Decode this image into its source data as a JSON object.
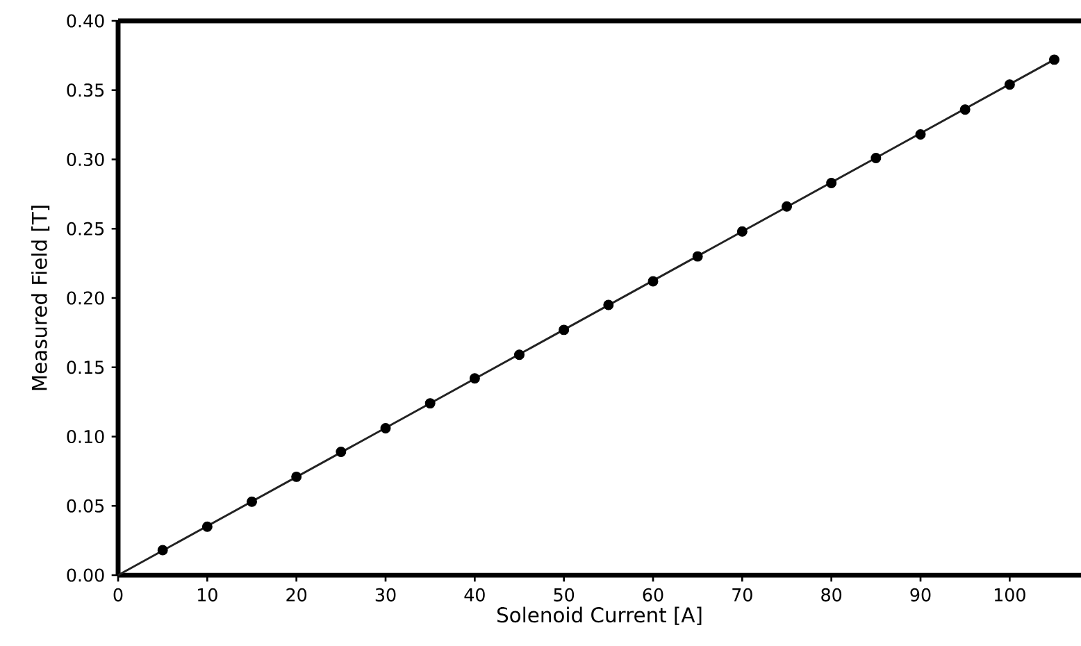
{
  "chart_data": {
    "type": "scatter",
    "xlabel": "Solenoid Current [A]",
    "ylabel": "Measured Field [T]",
    "xlim": [
      0,
      108
    ],
    "ylim": [
      0,
      0.4
    ],
    "xticks": [
      0,
      10,
      20,
      30,
      40,
      50,
      60,
      70,
      80,
      90,
      100
    ],
    "yticks": [
      {
        "value": 0,
        "label": "0.00"
      },
      {
        "value": 0.05,
        "label": "0.05"
      },
      {
        "value": 0.1,
        "label": "0.10"
      },
      {
        "value": 0.15,
        "label": "0.15"
      },
      {
        "value": 0.2,
        "label": "0.20"
      },
      {
        "value": 0.25,
        "label": "0.25"
      },
      {
        "value": 0.3,
        "label": "0.30"
      },
      {
        "value": 0.35,
        "label": "0.35"
      },
      {
        "value": 0.4,
        "label": "0.40"
      }
    ],
    "grid": false,
    "series": [
      {
        "type": "line",
        "color": "#222222",
        "marker": "none",
        "x": [
          0,
          105
        ],
        "values": [
          0,
          0.372
        ]
      },
      {
        "color": "#000000",
        "marker": "circle",
        "x": [
          5,
          10,
          15,
          20,
          25,
          30,
          35,
          40,
          45,
          50,
          55,
          60,
          65,
          70,
          75,
          80,
          85,
          90,
          95,
          100,
          105
        ],
        "values": [
          0.018,
          0.035,
          0.053,
          0.071,
          0.089,
          0.106,
          0.124,
          0.142,
          0.159,
          0.177,
          0.195,
          0.212,
          0.23,
          0.248,
          0.266,
          0.283,
          0.301,
          0.318,
          0.336,
          0.354,
          0.372
        ]
      }
    ]
  }
}
